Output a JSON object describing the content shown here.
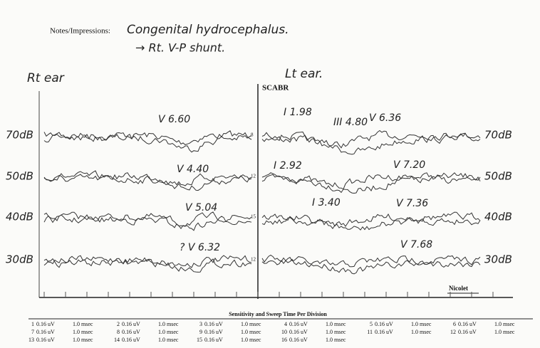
{
  "header": {
    "label": "Notes/Impressions:",
    "notes": [
      "Congenital hydrocephalus.",
      "→ Rt. V-P shunt."
    ]
  },
  "panels": [
    {
      "title": "Rt ear",
      "levels": [
        "70dB",
        "50dB",
        "40dB",
        "30dB"
      ],
      "channels": [
        "8",
        "12",
        "15",
        "12"
      ],
      "annotations": [
        "V 6.60",
        "V 4.40",
        "V 5.04",
        "? V 6.32"
      ]
    },
    {
      "title": "Lt ear.",
      "subtitle": "SCABR",
      "levels": [
        "70dB",
        "50dB",
        "40dB",
        "30dB"
      ],
      "annotations": [
        "I 1.98",
        "III 4.80",
        "V 6.36",
        "I 2.92",
        "V 7.20",
        "I 3.40",
        "V 7.36",
        "V 7.68"
      ]
    }
  ],
  "footer": "Nicolet",
  "table": {
    "title": "Sensitivity and Sweep Time Per Division",
    "channels": [
      {
        "number": 1,
        "sensitivity": "0.16 uV",
        "sweep": "1.0 msec"
      },
      {
        "number": 2,
        "sensitivity": "0.16 uV",
        "sweep": "1.0 msec"
      },
      {
        "number": 3,
        "sensitivity": "0.16 uV",
        "sweep": "1.0 msec"
      },
      {
        "number": 4,
        "sensitivity": "0.16 uV",
        "sweep": "1.0 msec"
      },
      {
        "number": 5,
        "sensitivity": "0.16 uV",
        "sweep": "1.0 msec"
      },
      {
        "number": 6,
        "sensitivity": "0.16 uV",
        "sweep": "1.0 msec"
      },
      {
        "number": 7,
        "sensitivity": "0.16 uV",
        "sweep": "1.0 msec"
      },
      {
        "number": 8,
        "sensitivity": "0.16 uV",
        "sweep": "1.0 msec"
      },
      {
        "number": 9,
        "sensitivity": "0.16 uV",
        "sweep": "1.0 msec"
      },
      {
        "number": 10,
        "sensitivity": "0.16 uV",
        "sweep": "1.0 msec"
      },
      {
        "number": 11,
        "sensitivity": "0.16 uV",
        "sweep": "1.0 msec"
      },
      {
        "number": 12,
        "sensitivity": "0.16 uV",
        "sweep": "1.0 msec"
      },
      {
        "number": 13,
        "sensitivity": "0.16 uV",
        "sweep": "1.0 msec"
      },
      {
        "number": 14,
        "sensitivity": "0.16 uV",
        "sweep": "1.0 msec"
      },
      {
        "number": 15,
        "sensitivity": "0.16 uV",
        "sweep": "1.0 msec"
      },
      {
        "number": 16,
        "sensitivity": "0.16 uV",
        "sweep": "1.0 msec"
      }
    ]
  }
}
